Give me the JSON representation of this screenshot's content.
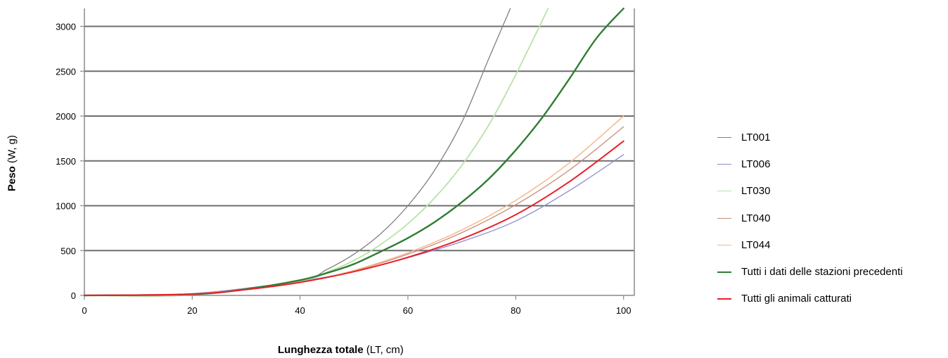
{
  "chart_data": {
    "type": "line",
    "xlabel_bold": "Lunghezza totale",
    "xlabel_rest": " (LT, cm)",
    "ylabel_bold": "Peso",
    "ylabel_rest": " (W, g)",
    "xlim": [
      0,
      102
    ],
    "ylim": [
      0,
      3200
    ],
    "xticks": [
      0,
      20,
      40,
      60,
      80,
      100
    ],
    "yticks": [
      0,
      500,
      1000,
      1500,
      2000,
      2500,
      3000
    ],
    "grid": "horizontal",
    "legend_position": "right",
    "series": [
      {
        "name": "LT001",
        "color": "#7f7f7f",
        "width": 1.3,
        "x": [
          0,
          20,
          40,
          45,
          50,
          55,
          60,
          65,
          70,
          75,
          79
        ],
        "y": [
          0,
          5,
          170,
          290,
          460,
          690,
          1000,
          1400,
          1930,
          2640,
          3200
        ]
      },
      {
        "name": "LT006",
        "color": "#8e8ccc",
        "width": 1.3,
        "x": [
          0,
          20,
          40,
          50,
          60,
          70,
          80,
          90,
          100
        ],
        "y": [
          0,
          20,
          160,
          270,
          420,
          600,
          830,
          1170,
          1570
        ]
      },
      {
        "name": "LT030",
        "color": "#b9e2a8",
        "width": 1.8,
        "x": [
          0,
          20,
          40,
          45,
          50,
          55,
          60,
          65,
          70,
          75,
          80,
          86
        ],
        "y": [
          0,
          8,
          165,
          260,
          390,
          570,
          800,
          1090,
          1450,
          1900,
          2460,
          3200
        ]
      },
      {
        "name": "LT040",
        "color": "#c98b78",
        "width": 1.3,
        "x": [
          0,
          20,
          40,
          50,
          60,
          70,
          80,
          90,
          100
        ],
        "y": [
          0,
          15,
          150,
          275,
          460,
          700,
          1010,
          1400,
          1880
        ]
      },
      {
        "name": "LT044",
        "color": "#f5b98c",
        "width": 1.5,
        "x": [
          0,
          20,
          40,
          50,
          60,
          70,
          80,
          90,
          100
        ],
        "y": [
          0,
          15,
          150,
          280,
          475,
          730,
          1060,
          1480,
          2000
        ]
      },
      {
        "name": "Tutti i dati delle stazioni precedenti",
        "color": "#2e7d32",
        "width": 2.4,
        "x": [
          0,
          20,
          30,
          40,
          45,
          50,
          55,
          60,
          65,
          70,
          75,
          80,
          85,
          90,
          95,
          100
        ],
        "y": [
          0,
          12,
          70,
          170,
          250,
          350,
          490,
          640,
          820,
          1040,
          1300,
          1620,
          1990,
          2420,
          2870,
          3200
        ]
      },
      {
        "name": "Tutti gli animali catturati",
        "color": "#e8202a",
        "width": 2.0,
        "x": [
          0,
          20,
          30,
          40,
          50,
          60,
          70,
          80,
          90,
          100
        ],
        "y": [
          0,
          15,
          65,
          145,
          265,
          425,
          630,
          900,
          1270,
          1720
        ]
      }
    ]
  }
}
